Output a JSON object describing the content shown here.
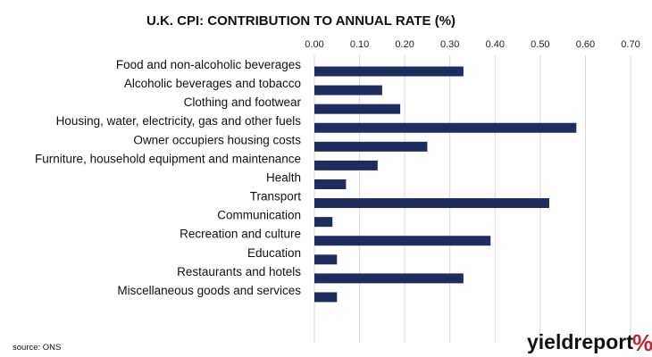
{
  "chart_data": {
    "type": "bar",
    "orientation": "horizontal",
    "title": "U.K. CPI: CONTRIBUTION TO ANNUAL RATE (%)",
    "categories": [
      "Food and non-alcoholic beverages",
      "Alcoholic beverages and tobacco",
      "Clothing and footwear",
      "Housing, water, electricity, gas and other fuels",
      "Owner occupiers housing costs",
      "Furniture, household equipment and maintenance",
      "Health",
      "Transport",
      "Communication",
      "Recreation and culture",
      "Education",
      "Restaurants and hotels",
      "Miscellaneous goods and services"
    ],
    "values": [
      0.33,
      0.15,
      0.19,
      0.58,
      0.25,
      0.14,
      0.07,
      0.52,
      0.04,
      0.39,
      0.05,
      0.33,
      0.05
    ],
    "xlim": [
      0,
      0.7
    ],
    "ticks": [
      "0.00",
      "0.10",
      "0.20",
      "0.30",
      "0.40",
      "0.50",
      "0.60",
      "0.70"
    ],
    "tick_values": [
      0,
      0.1,
      0.2,
      0.3,
      0.4,
      0.5,
      0.6,
      0.7
    ],
    "axis_position": "top",
    "grid": "vertical",
    "legend": "none",
    "bar_color": "#1f2d5e",
    "grid_color": "#d9d9d9"
  },
  "source": "source: ONS",
  "brand": {
    "name": "yieldreport",
    "symbol": "%",
    "symbol_colors": [
      "#c0272d",
      "#2e8b3e"
    ]
  }
}
